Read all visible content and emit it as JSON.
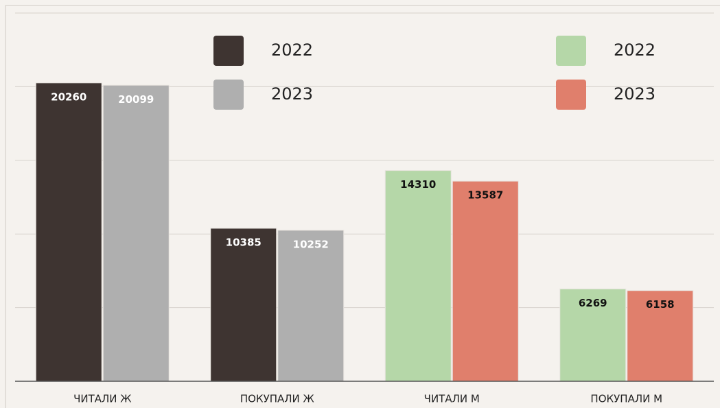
{
  "chart_data": {
    "type": "bar",
    "categories": [
      "ЧИТАЛИ Ж",
      "ПОКУПАЛИ Ж",
      "ЧИТАЛИ М",
      "ПОКУПАЛИ М"
    ],
    "series": [
      {
        "name": "2022",
        "color": "#3e3431",
        "label_color": "#ffffff",
        "values": [
          20260,
          10385,
          null,
          null
        ]
      },
      {
        "name": "2023",
        "color": "#afafaf",
        "label_color": "#ffffff",
        "values": [
          20099,
          10252,
          null,
          null
        ]
      },
      {
        "name": "2022",
        "color": "#b5d7a8",
        "label_color": "#111111",
        "values": [
          null,
          null,
          14310,
          6269
        ]
      },
      {
        "name": "2023",
        "color": "#e07f6c",
        "label_color": "#111111",
        "values": [
          null,
          null,
          13587,
          6158
        ]
      }
    ],
    "ylim": [
      0,
      25000
    ],
    "yticks": [
      5000,
      10000,
      15000,
      20000,
      25000
    ],
    "grid": true
  }
}
